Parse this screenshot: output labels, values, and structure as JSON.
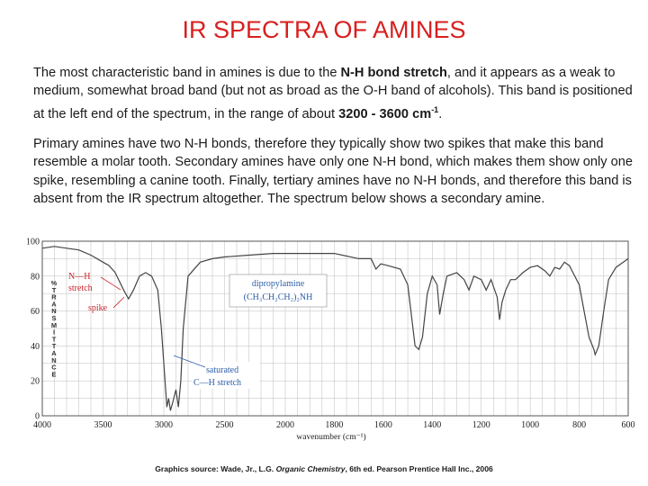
{
  "slide": {
    "title": "IR SPECTRA OF AMINES",
    "p1_a": "The most characteristic band in amines is due to the ",
    "p1_b": "N-H bond stretch",
    "p1_c": ", and it appears as a weak to medium, somewhat broad band (but not as broad as the O-H band of alcohols). This band is positioned at the left end of the spectrum, in the range of about ",
    "p1_d": "3200 - 3600 cm",
    "p1_d_sup": "-1",
    "p1_e": ".",
    "p2": "Primary amines have two N-H bonds, therefore they typically show two spikes that make this band resemble a molar tooth. Secondary amines have only one N-H bond, which makes them show only one spike, resembling a canine tooth. Finally, tertiary amines have no N-H bonds, and therefore this band is absent from the IR spectrum altogether. The spectrum below shows a secondary amine.",
    "credit_a": "Graphics source: Wade, Jr., L.G. ",
    "credit_b": "Organic Chemistry",
    "credit_c": ", 6th ed. Pearson Prentice Hall Inc., 2006"
  },
  "chart_data": {
    "type": "line",
    "title": "",
    "xlabel": "wavenumber (cm⁻¹)",
    "ylabel": "% TRANSMITTANCE",
    "ylabel_letters": [
      "%",
      "T",
      "R",
      "A",
      "N",
      "S",
      "M",
      "I",
      "T",
      "T",
      "A",
      "N",
      "C",
      "E"
    ],
    "xlim": [
      4000,
      600
    ],
    "ylim": [
      0,
      100
    ],
    "x_ticks": [
      4000,
      3500,
      3000,
      2500,
      2000,
      1800,
      1600,
      1400,
      1200,
      1000,
      800,
      600
    ],
    "x_tick_labels": [
      "4000",
      "3500",
      "3000",
      "2500",
      "2000",
      "1800",
      "1600",
      "1400",
      "1200",
      "1000",
      "800",
      "600"
    ],
    "y_ticks": [
      0,
      20,
      40,
      60,
      80,
      100
    ],
    "y_tick_labels": [
      "0",
      "20",
      "40",
      "60",
      "80",
      "100"
    ],
    "grid": true,
    "line_color": "#444444",
    "grid_color": "#bdbdbd",
    "annotation_color": "#c8262b",
    "compound_color": "#2a5ea8",
    "series": [
      {
        "values": [
          [
            4000,
            96
          ],
          [
            3900,
            97
          ],
          [
            3800,
            96
          ],
          [
            3700,
            95
          ],
          [
            3600,
            92
          ],
          [
            3500,
            88
          ],
          [
            3450,
            86
          ],
          [
            3400,
            82
          ],
          [
            3330,
            72
          ],
          [
            3290,
            67
          ],
          [
            3250,
            72
          ],
          [
            3200,
            80
          ],
          [
            3150,
            82
          ],
          [
            3100,
            80
          ],
          [
            3050,
            72
          ],
          [
            3020,
            50
          ],
          [
            2995,
            25
          ],
          [
            2975,
            5
          ],
          [
            2960,
            10
          ],
          [
            2945,
            3
          ],
          [
            2925,
            8
          ],
          [
            2900,
            15
          ],
          [
            2880,
            5
          ],
          [
            2860,
            20
          ],
          [
            2840,
            50
          ],
          [
            2800,
            80
          ],
          [
            2700,
            88
          ],
          [
            2600,
            90
          ],
          [
            2500,
            91
          ],
          [
            2300,
            92
          ],
          [
            2100,
            93
          ],
          [
            2000,
            93
          ],
          [
            1900,
            93
          ],
          [
            1800,
            93
          ],
          [
            1700,
            90
          ],
          [
            1650,
            90
          ],
          [
            1630,
            84
          ],
          [
            1610,
            87
          ],
          [
            1580,
            86
          ],
          [
            1530,
            84
          ],
          [
            1500,
            75
          ],
          [
            1470,
            40
          ],
          [
            1455,
            38
          ],
          [
            1440,
            45
          ],
          [
            1420,
            70
          ],
          [
            1400,
            80
          ],
          [
            1380,
            75
          ],
          [
            1370,
            58
          ],
          [
            1355,
            70
          ],
          [
            1340,
            80
          ],
          [
            1300,
            82
          ],
          [
            1270,
            78
          ],
          [
            1250,
            72
          ],
          [
            1230,
            80
          ],
          [
            1200,
            78
          ],
          [
            1180,
            72
          ],
          [
            1160,
            78
          ],
          [
            1135,
            68
          ],
          [
            1125,
            55
          ],
          [
            1115,
            65
          ],
          [
            1100,
            72
          ],
          [
            1080,
            78
          ],
          [
            1060,
            78
          ],
          [
            1045,
            80
          ],
          [
            1030,
            82
          ],
          [
            1000,
            85
          ],
          [
            970,
            86
          ],
          [
            940,
            83
          ],
          [
            920,
            80
          ],
          [
            900,
            85
          ],
          [
            880,
            84
          ],
          [
            860,
            88
          ],
          [
            840,
            86
          ],
          [
            800,
            75
          ],
          [
            780,
            60
          ],
          [
            760,
            45
          ],
          [
            740,
            38
          ],
          [
            735,
            35
          ],
          [
            720,
            40
          ],
          [
            700,
            60
          ],
          [
            680,
            78
          ],
          [
            650,
            85
          ],
          [
            620,
            88
          ],
          [
            600,
            90
          ]
        ]
      }
    ],
    "annotations": {
      "nh_line1": "N—H",
      "nh_line2": "stretch",
      "spike": "spike",
      "compound_name": "dipropylamine",
      "compound_formula": "(CH₃CH₂CH₂)₂NH",
      "ch_line1": "saturated",
      "ch_line2": "C—H stretch"
    }
  }
}
